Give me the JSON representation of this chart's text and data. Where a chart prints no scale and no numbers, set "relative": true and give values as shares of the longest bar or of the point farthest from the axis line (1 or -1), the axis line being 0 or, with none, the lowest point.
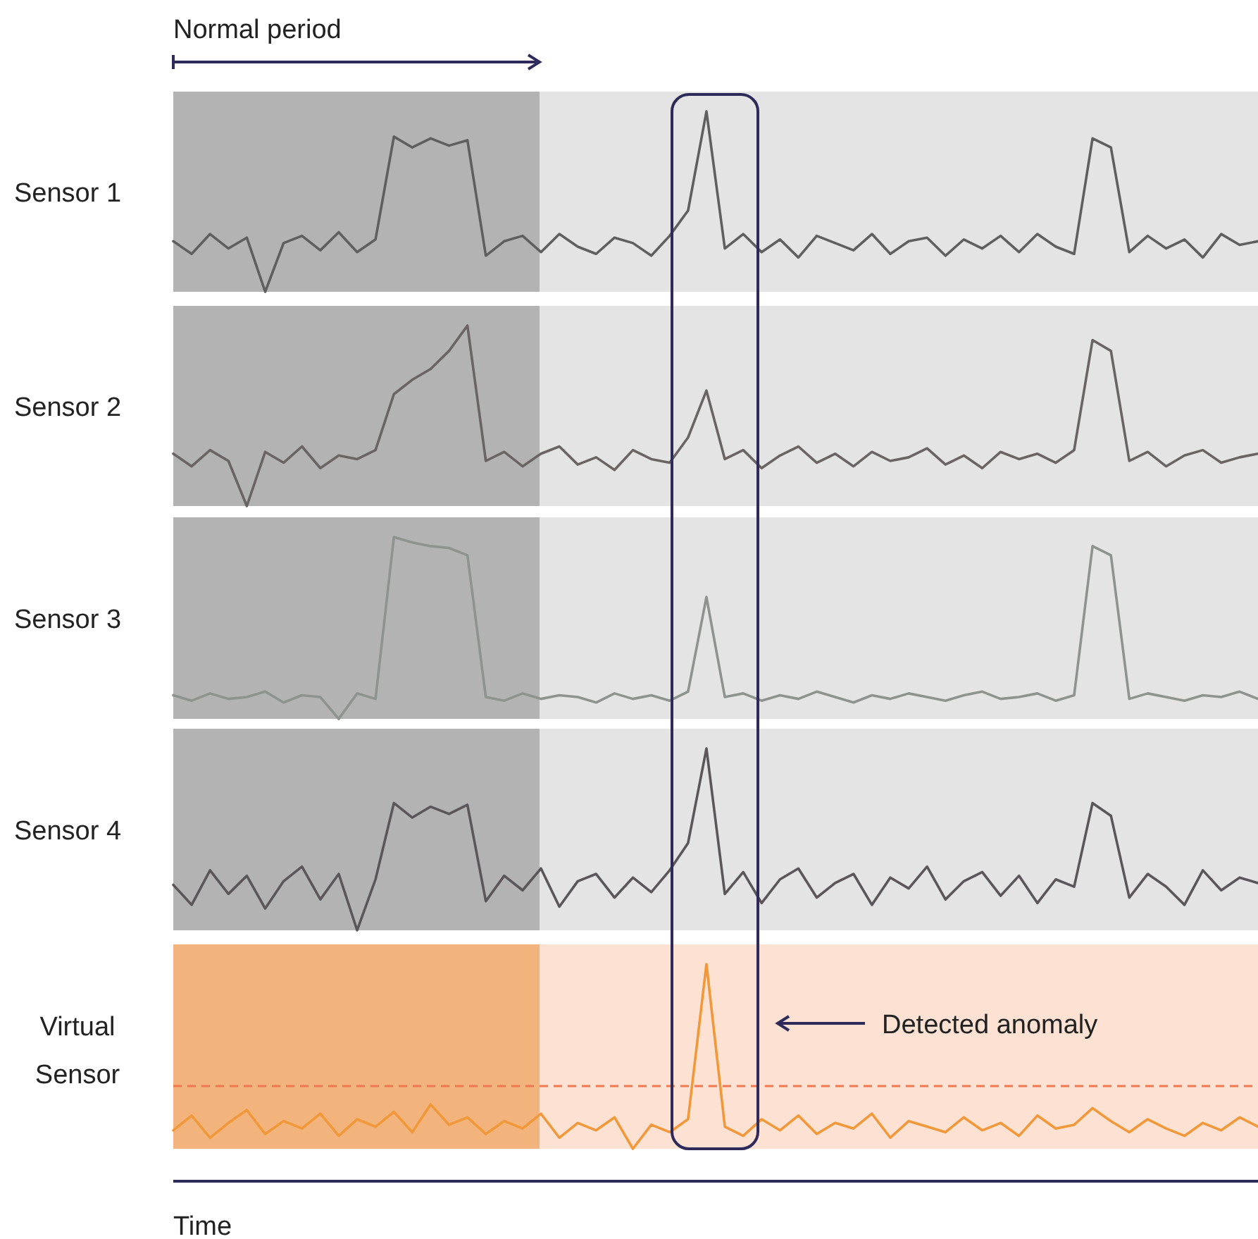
{
  "chart_data": [
    {
      "type": "line",
      "ylabel": "Sensor 1",
      "relative": true,
      "annotations": [
        "Normal period"
      ],
      "categories": [
        null,
        null,
        null,
        null,
        null,
        null,
        null,
        null,
        null,
        null,
        null,
        null,
        null,
        null,
        null,
        null,
        null,
        null,
        null,
        null,
        null,
        null,
        null,
        null,
        null,
        null,
        null,
        null,
        null,
        null,
        null,
        null,
        null,
        null,
        null,
        null,
        null,
        null,
        null,
        null,
        null,
        null,
        null,
        null,
        null,
        null,
        null,
        null,
        null,
        null,
        null,
        null,
        null,
        null,
        null,
        null,
        null,
        null,
        null,
        null
      ],
      "series": [
        {
          "color": "#5f5f5f",
          "values": [
            0.28,
            0.21,
            0.32,
            0.24,
            0.3,
            0,
            0.27,
            0.31,
            0.23,
            0.33,
            0.22,
            0.29,
            0.86,
            0.8,
            0.85,
            0.81,
            0.84,
            0.2,
            0.28,
            0.31,
            0.22,
            0.32,
            0.25,
            0.21,
            0.3,
            0.27,
            0.2,
            0.31,
            0.45,
            1,
            0.24,
            0.32,
            0.22,
            0.29,
            0.19,
            0.31,
            0.27,
            0.23,
            0.32,
            0.21,
            0.28,
            0.3,
            0.2,
            0.29,
            0.24,
            0.31,
            0.22,
            0.32,
            0.25,
            0.21,
            0.85,
            0.8,
            0.22,
            0.31,
            0.24,
            0.29,
            0.19,
            0.32,
            0.26,
            0.28
          ]
        }
      ]
    },
    {
      "type": "line",
      "ylabel": "Sensor 2",
      "relative": true,
      "categories": [
        null,
        null,
        null,
        null,
        null,
        null,
        null,
        null,
        null,
        null,
        null,
        null,
        null,
        null,
        null,
        null,
        null,
        null,
        null,
        null,
        null,
        null,
        null,
        null,
        null,
        null,
        null,
        null,
        null,
        null,
        null,
        null,
        null,
        null,
        null,
        null,
        null,
        null,
        null,
        null,
        null,
        null,
        null,
        null,
        null,
        null,
        null,
        null,
        null,
        null,
        null,
        null,
        null,
        null,
        null,
        null,
        null,
        null,
        null,
        null
      ],
      "series": [
        {
          "color": "#6a6464",
          "values": [
            0.29,
            0.22,
            0.31,
            0.25,
            0,
            0.3,
            0.24,
            0.33,
            0.21,
            0.28,
            0.26,
            0.31,
            0.62,
            0.7,
            0.76,
            0.86,
            1,
            0.25,
            0.3,
            0.22,
            0.29,
            0.33,
            0.23,
            0.27,
            0.2,
            0.31,
            0.26,
            0.24,
            0.38,
            0.64,
            0.26,
            0.31,
            0.21,
            0.28,
            0.33,
            0.24,
            0.29,
            0.22,
            0.3,
            0.25,
            0.27,
            0.32,
            0.23,
            0.28,
            0.21,
            0.3,
            0.26,
            0.29,
            0.24,
            0.31,
            0.92,
            0.86,
            0.25,
            0.3,
            0.22,
            0.28,
            0.31,
            0.24,
            0.27,
            0.29
          ]
        }
      ]
    },
    {
      "type": "line",
      "ylabel": "Sensor 3",
      "relative": true,
      "categories": [
        null,
        null,
        null,
        null,
        null,
        null,
        null,
        null,
        null,
        null,
        null,
        null,
        null,
        null,
        null,
        null,
        null,
        null,
        null,
        null,
        null,
        null,
        null,
        null,
        null,
        null,
        null,
        null,
        null,
        null,
        null,
        null,
        null,
        null,
        null,
        null,
        null,
        null,
        null,
        null,
        null,
        null,
        null,
        null,
        null,
        null,
        null,
        null,
        null,
        null,
        null,
        null,
        null,
        null,
        null,
        null,
        null,
        null,
        null,
        null
      ],
      "series": [
        {
          "color": "#8f938f",
          "values": [
            0.13,
            0.1,
            0.14,
            0.11,
            0.12,
            0.15,
            0.09,
            0.13,
            0.12,
            0,
            0.14,
            0.11,
            1,
            0.97,
            0.95,
            0.94,
            0.9,
            0.12,
            0.1,
            0.14,
            0.11,
            0.13,
            0.12,
            0.09,
            0.14,
            0.11,
            0.13,
            0.1,
            0.15,
            0.67,
            0.12,
            0.14,
            0.1,
            0.13,
            0.11,
            0.15,
            0.12,
            0.09,
            0.13,
            0.11,
            0.14,
            0.12,
            0.1,
            0.13,
            0.15,
            0.11,
            0.12,
            0.14,
            0.1,
            0.13,
            0.95,
            0.9,
            0.11,
            0.14,
            0.12,
            0.1,
            0.13,
            0.12,
            0.15,
            0.11
          ]
        }
      ]
    },
    {
      "type": "line",
      "ylabel": "Sensor 4",
      "relative": true,
      "categories": [
        null,
        null,
        null,
        null,
        null,
        null,
        null,
        null,
        null,
        null,
        null,
        null,
        null,
        null,
        null,
        null,
        null,
        null,
        null,
        null,
        null,
        null,
        null,
        null,
        null,
        null,
        null,
        null,
        null,
        null,
        null,
        null,
        null,
        null,
        null,
        null,
        null,
        null,
        null,
        null,
        null,
        null,
        null,
        null,
        null,
        null,
        null,
        null,
        null,
        null,
        null,
        null,
        null,
        null,
        null,
        null,
        null,
        null,
        null,
        null
      ],
      "series": [
        {
          "color": "#5a565a",
          "values": [
            0.25,
            0.14,
            0.33,
            0.2,
            0.3,
            0.12,
            0.27,
            0.35,
            0.17,
            0.31,
            0,
            0.28,
            0.7,
            0.62,
            0.68,
            0.64,
            0.69,
            0.16,
            0.3,
            0.22,
            0.34,
            0.13,
            0.27,
            0.31,
            0.18,
            0.29,
            0.21,
            0.33,
            0.48,
            1,
            0.2,
            0.32,
            0.15,
            0.28,
            0.34,
            0.18,
            0.26,
            0.31,
            0.14,
            0.29,
            0.23,
            0.35,
            0.17,
            0.27,
            0.32,
            0.19,
            0.3,
            0.15,
            0.28,
            0.24,
            0.7,
            0.63,
            0.18,
            0.31,
            0.24,
            0.14,
            0.33,
            0.22,
            0.29,
            0.26
          ]
        }
      ]
    },
    {
      "type": "line",
      "ylabel": "Virtual Sensor",
      "xlabel": "Time",
      "relative": true,
      "categories": [
        null,
        null,
        null,
        null,
        null,
        null,
        null,
        null,
        null,
        null,
        null,
        null,
        null,
        null,
        null,
        null,
        null,
        null,
        null,
        null,
        null,
        null,
        null,
        null,
        null,
        null,
        null,
        null,
        null,
        null,
        null,
        null,
        null,
        null,
        null,
        null,
        null,
        null,
        null,
        null,
        null,
        null,
        null,
        null,
        null,
        null,
        null,
        null,
        null,
        null,
        null,
        null,
        null,
        null,
        null,
        null,
        null,
        null,
        null,
        null
      ],
      "ref_lines": [
        {
          "axis": "y",
          "value": 0.34,
          "color": "#f07850",
          "line_style": "dashed"
        }
      ],
      "annotations": [
        "Detected anomaly"
      ],
      "series": [
        {
          "color": "#f0983a",
          "values": [
            0.1,
            0.18,
            0.06,
            0.14,
            0.21,
            0.08,
            0.15,
            0.11,
            0.19,
            0.07,
            0.16,
            0.12,
            0.2,
            0.09,
            0.24,
            0.13,
            0.17,
            0.08,
            0.15,
            0.11,
            0.19,
            0.06,
            0.14,
            0.1,
            0.17,
            0,
            0.13,
            0.09,
            0.16,
            1,
            0.12,
            0.07,
            0.16,
            0.1,
            0.18,
            0.08,
            0.14,
            0.11,
            0.19,
            0.06,
            0.15,
            0.12,
            0.09,
            0.17,
            0.1,
            0.14,
            0.07,
            0.18,
            0.11,
            0.13,
            0.22,
            0.15,
            0.09,
            0.16,
            0.11,
            0.07,
            0.14,
            0.1,
            0.17,
            0.12
          ]
        }
      ]
    }
  ]
}
